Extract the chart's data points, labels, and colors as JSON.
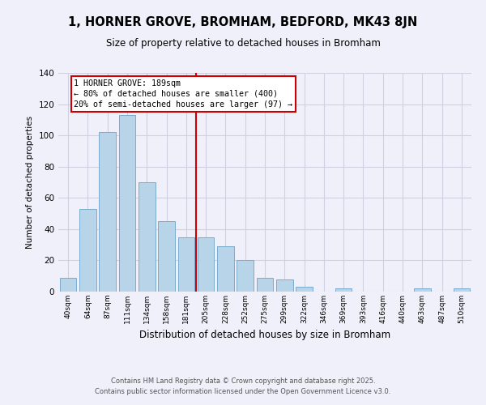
{
  "title": "1, HORNER GROVE, BROMHAM, BEDFORD, MK43 8JN",
  "subtitle": "Size of property relative to detached houses in Bromham",
  "xlabel": "Distribution of detached houses by size in Bromham",
  "ylabel": "Number of detached properties",
  "bar_labels": [
    "40sqm",
    "64sqm",
    "87sqm",
    "111sqm",
    "134sqm",
    "158sqm",
    "181sqm",
    "205sqm",
    "228sqm",
    "252sqm",
    "275sqm",
    "299sqm",
    "322sqm",
    "346sqm",
    "369sqm",
    "393sqm",
    "416sqm",
    "440sqm",
    "463sqm",
    "487sqm",
    "510sqm"
  ],
  "bar_values": [
    9,
    53,
    102,
    113,
    70,
    45,
    35,
    35,
    29,
    20,
    9,
    8,
    3,
    0,
    2,
    0,
    0,
    0,
    2,
    0,
    2
  ],
  "bar_color": "#b8d4e8",
  "bar_edge_color": "#7aacce",
  "highlight_label": "1 HORNER GROVE: 189sqm",
  "annotation_line1": "← 80% of detached houses are smaller (400)",
  "annotation_line2": "20% of semi-detached houses are larger (97) →",
  "vline_color": "#cc0000",
  "ylim": [
    0,
    140
  ],
  "yticks": [
    0,
    20,
    40,
    60,
    80,
    100,
    120,
    140
  ],
  "footer_line1": "Contains HM Land Registry data © Crown copyright and database right 2025.",
  "footer_line2": "Contains public sector information licensed under the Open Government Licence v3.0.",
  "bg_color": "#f0f0fa",
  "grid_color": "#d0d0e0"
}
